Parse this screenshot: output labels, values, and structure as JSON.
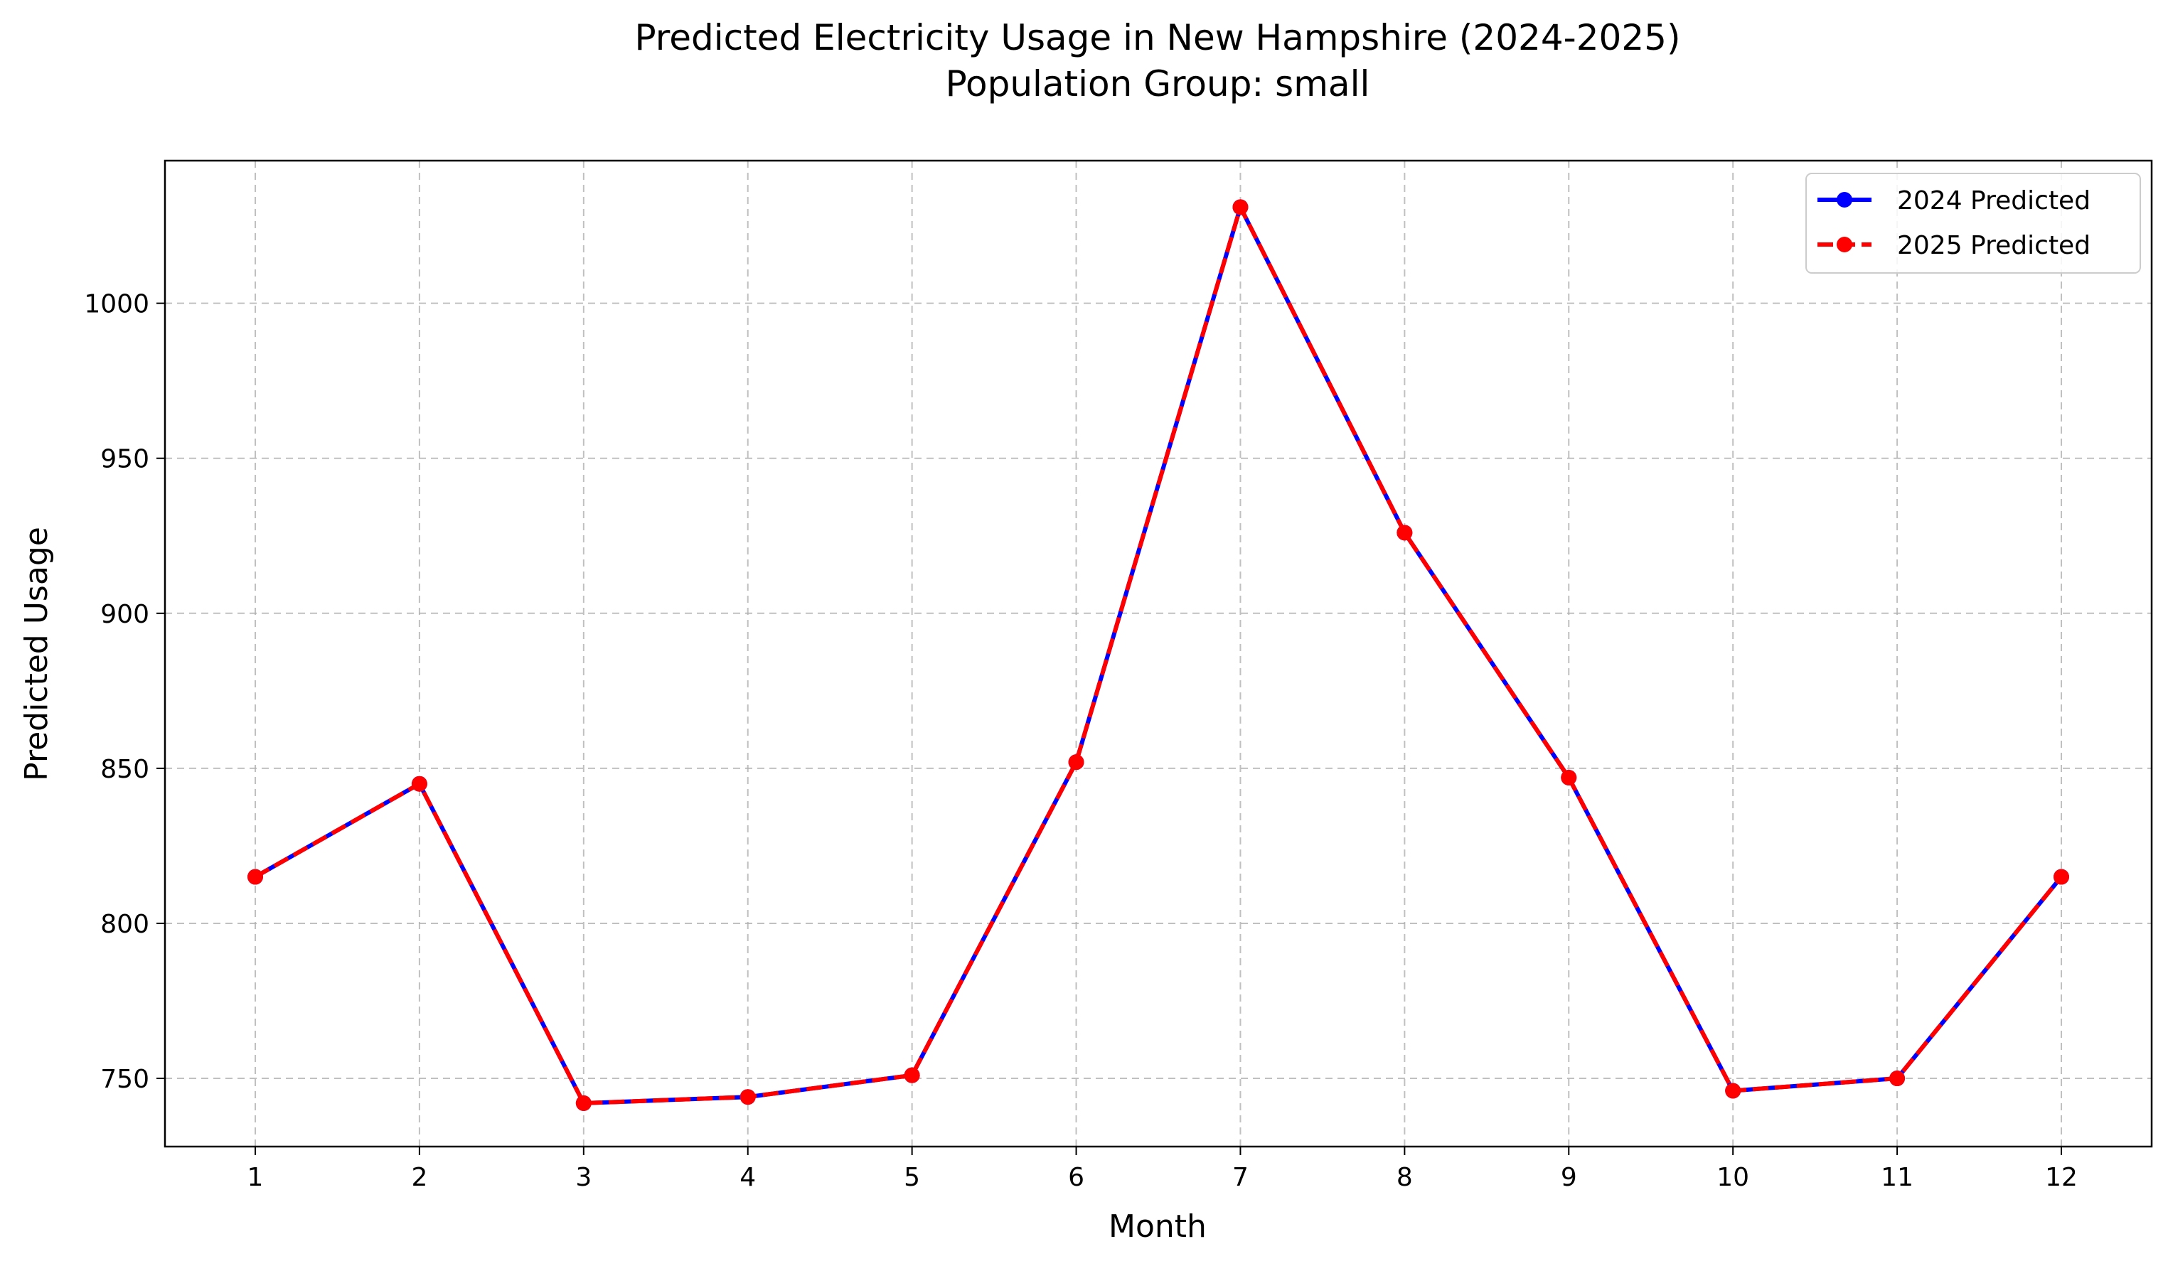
{
  "chart_data": {
    "type": "line",
    "title": "Predicted Electricity Usage in New Hampshire (2024-2025)",
    "subtitle": "Population Group: small",
    "xlabel": "Month",
    "ylabel": "Predicted Usage",
    "x": [
      1,
      2,
      3,
      4,
      5,
      6,
      7,
      8,
      9,
      10,
      11,
      12
    ],
    "xlim": [
      0.45,
      12.55
    ],
    "ylim": [
      728,
      1046
    ],
    "yticks": [
      750,
      800,
      850,
      900,
      950,
      1000
    ],
    "grid": true,
    "legend_position": "top-right",
    "series": [
      {
        "name": "2024 Predicted",
        "color": "#0000ff",
        "line_style": "solid",
        "values": [
          815,
          845,
          742,
          744,
          751,
          852,
          1031,
          926,
          847,
          746,
          750,
          815
        ]
      },
      {
        "name": "2025 Predicted",
        "color": "#ff0000",
        "line_style": "dashed",
        "values": [
          815,
          845,
          742,
          744,
          751,
          852,
          1031,
          926,
          847,
          746,
          750,
          815
        ]
      }
    ]
  }
}
